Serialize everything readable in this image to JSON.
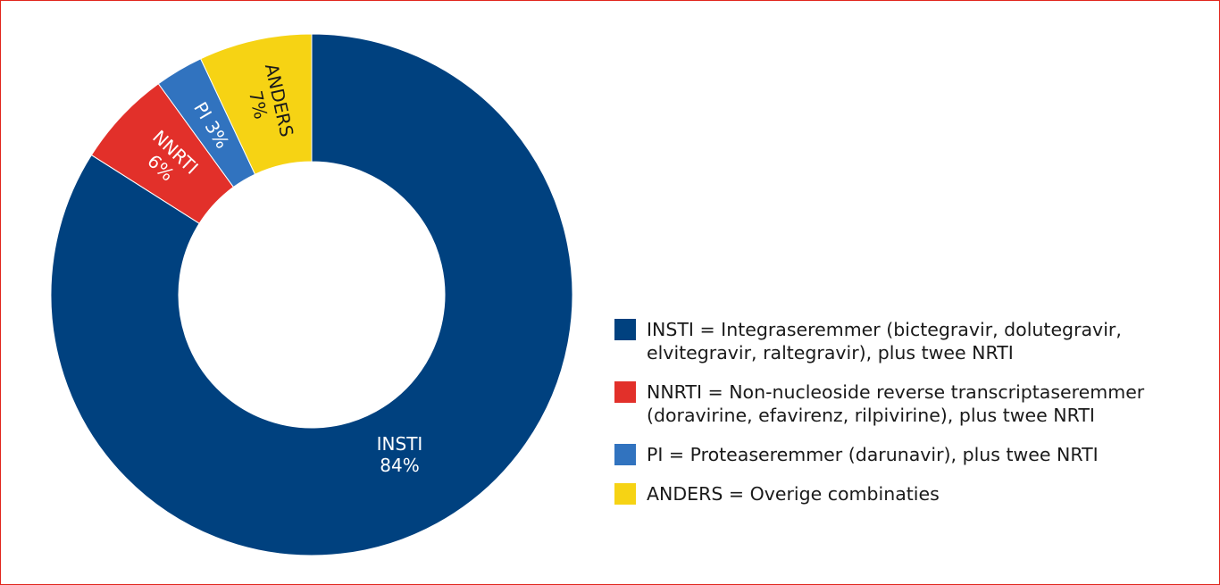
{
  "chart_data": {
    "type": "pie",
    "donut": true,
    "start_angle_deg": 0,
    "direction": "clockwise",
    "slices": [
      {
        "key": "INSTI",
        "label": "INSTI",
        "value": 84,
        "value_label": "84%",
        "color": "#00417f",
        "label_color": "#ffffff"
      },
      {
        "key": "NNRTI",
        "label": "NNRTI",
        "value": 6,
        "value_label": "6%",
        "color": "#e2302a",
        "label_color": "#ffffff"
      },
      {
        "key": "PI",
        "label": "PI",
        "value": 3,
        "value_label": "3%",
        "color": "#3173bf",
        "label_color": "#ffffff"
      },
      {
        "key": "ANDERS",
        "label": "ANDERS",
        "value": 7,
        "value_label": "7%",
        "color": "#f6d314",
        "label_color": "#1a1a1a"
      }
    ],
    "legend": {
      "placement": "right",
      "entries": [
        {
          "color": "#00417f",
          "line1": "INSTI = Integraseremmer (bictegravir, dolutegravir,",
          "line2": "elvitegravir, raltegravir), plus twee NRTI"
        },
        {
          "color": "#e2302a",
          "line1": "NNRTI = Non-nucleoside reverse transcriptaseremmer",
          "line2": "(doravirine, efavirenz, rilpivirine), plus twee NRTI"
        },
        {
          "color": "#3173bf",
          "line1": "PI = Proteaseremmer (darunavir), plus twee NRTI",
          "line2": ""
        },
        {
          "color": "#f6d314",
          "line1": "ANDERS = Overige combinaties",
          "line2": ""
        }
      ]
    }
  }
}
